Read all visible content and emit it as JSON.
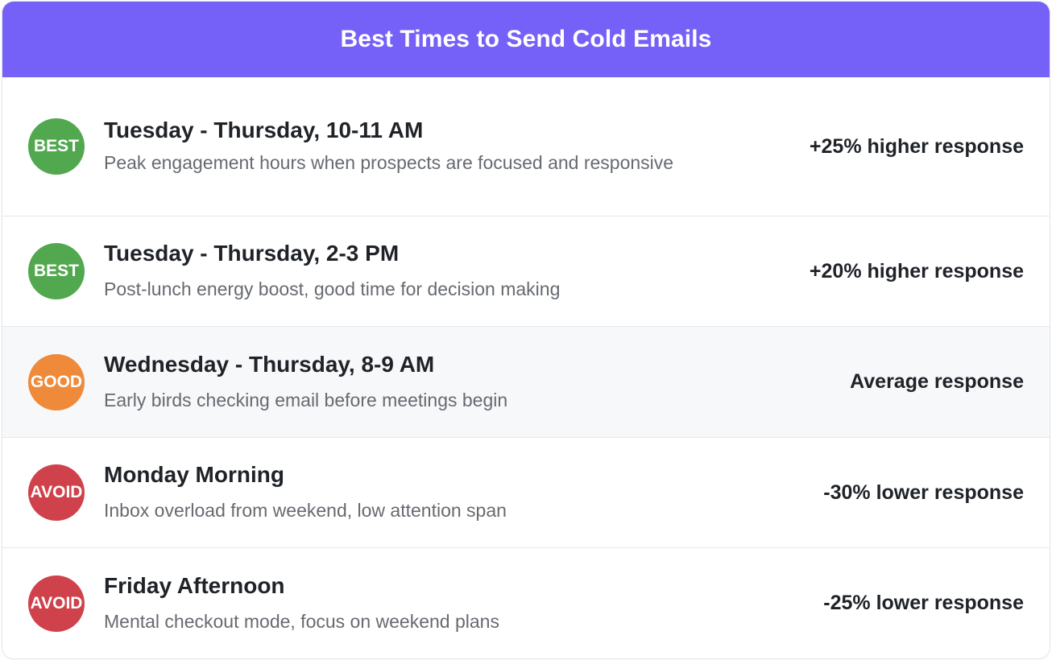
{
  "header": {
    "title": "Best Times to Send Cold Emails",
    "background_color": "#7561f7"
  },
  "rows": [
    {
      "badge": "BEST",
      "badge_color": "#52a84f",
      "title": "Tuesday - Thursday, 10-11 AM",
      "description": "Peak engagement hours when prospects are focused and responsive",
      "metric": "+25% higher response"
    },
    {
      "badge": "BEST",
      "badge_color": "#52a84f",
      "title": "Tuesday - Thursday, 2-3 PM",
      "description": "Post-lunch energy boost, good time for decision making",
      "metric": "+20% higher response"
    },
    {
      "badge": "GOOD",
      "badge_color": "#ef8a3a",
      "title": "Wednesday - Thursday, 8-9 AM",
      "description": "Early birds checking email before meetings begin",
      "metric": "Average response"
    },
    {
      "badge": "AVOID",
      "badge_color": "#cf424b",
      "title": "Monday Morning",
      "description": "Inbox overload from weekend, low attention span",
      "metric": "-30% lower response"
    },
    {
      "badge": "AVOID",
      "badge_color": "#cf424b",
      "title": "Friday Afternoon",
      "description": "Mental checkout mode, focus on weekend plans",
      "metric": "-25% lower response"
    }
  ]
}
